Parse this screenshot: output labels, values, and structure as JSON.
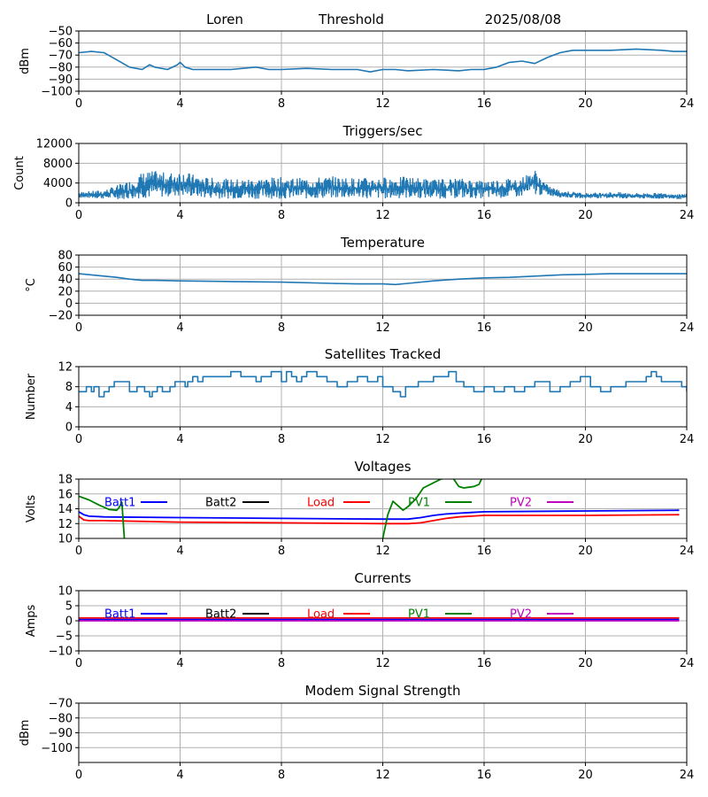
{
  "header": {
    "site": "Loren",
    "mode": "Threshold",
    "date": "2025/08/08"
  },
  "colors": {
    "series_default": "#1f77b4",
    "Batt1": "#0000ff",
    "Batt2": "#000000",
    "Load": "#ff0000",
    "PV1": "#008000",
    "PV2": "#bf00bf"
  },
  "chart_data": [
    {
      "id": "signal",
      "type": "line",
      "title": "",
      "ylabel": "dBm",
      "xlim": [
        0,
        24
      ],
      "ylim": [
        -100,
        -50
      ],
      "xticks": [
        0,
        4,
        8,
        12,
        16,
        20,
        24
      ],
      "yticks": [
        -100,
        -90,
        -80,
        -70,
        -60,
        -50
      ],
      "grid": true,
      "series": [
        {
          "color": "#1f77b4",
          "x": [
            0,
            0.5,
            1.0,
            1.5,
            2.0,
            2.5,
            2.8,
            3.0,
            3.5,
            3.9,
            4.0,
            4.2,
            4.5,
            5.0,
            6.0,
            7.0,
            7.5,
            8.0,
            9.0,
            10.0,
            11.0,
            11.5,
            12.0,
            12.5,
            13.0,
            14.0,
            15.0,
            15.5,
            16.0,
            16.5,
            17.0,
            17.5,
            18.0,
            18.5,
            19.0,
            19.5,
            20.0,
            21.0,
            22.0,
            23.0,
            23.5,
            24.0
          ],
          "y": [
            -68,
            -67,
            -68,
            -74,
            -80,
            -82,
            -78,
            -80,
            -82,
            -78,
            -76,
            -80,
            -82,
            -82,
            -82,
            -80,
            -82,
            -82,
            -81,
            -82,
            -82,
            -84,
            -82,
            -82,
            -83,
            -82,
            -83,
            -82,
            -82,
            -80,
            -76,
            -75,
            -77,
            -72,
            -68,
            -66,
            -66,
            -66,
            -65,
            -66,
            -67,
            -67
          ]
        }
      ]
    },
    {
      "id": "triggers",
      "type": "line",
      "title": "Triggers/sec",
      "ylabel": "Count",
      "xlim": [
        0,
        24
      ],
      "ylim": [
        0,
        12000
      ],
      "xticks": [
        0,
        4,
        8,
        12,
        16,
        20,
        24
      ],
      "yticks": [
        0,
        4000,
        8000,
        12000
      ],
      "grid": true,
      "series": [
        {
          "color": "#1f77b4",
          "x": [
            0,
            1,
            2,
            2.5,
            3,
            3.5,
            4,
            4.5,
            5,
            6,
            7,
            8,
            9,
            10,
            11,
            12,
            13,
            14,
            15,
            16,
            17,
            17.5,
            18,
            18.5,
            19,
            20,
            21,
            22,
            23,
            24
          ],
          "y_low": [
            1000,
            800,
            700,
            900,
            1000,
            1200,
            1300,
            1200,
            900,
            800,
            800,
            800,
            800,
            900,
            900,
            800,
            900,
            800,
            900,
            900,
            1000,
            1200,
            1500,
            1500,
            1100,
            900,
            900,
            800,
            800,
            700
          ],
          "y_high": [
            2200,
            2600,
            4500,
            6200,
            6500,
            6000,
            6600,
            5800,
            5200,
            4800,
            5000,
            5200,
            5000,
            5400,
            5000,
            5200,
            5300,
            4800,
            5000,
            4600,
            5000,
            5200,
            6800,
            3600,
            2500,
            2000,
            2200,
            2000,
            2000,
            1800
          ]
        }
      ]
    },
    {
      "id": "temperature",
      "type": "line",
      "title": "Temperature",
      "ylabel": "°C",
      "xlim": [
        0,
        24
      ],
      "ylim": [
        -20,
        80
      ],
      "xticks": [
        0,
        4,
        8,
        12,
        16,
        20,
        24
      ],
      "yticks": [
        -20,
        0,
        20,
        40,
        60,
        80
      ],
      "grid": true,
      "series": [
        {
          "color": "#1f77b4",
          "x": [
            0,
            0.5,
            1,
            1.5,
            2,
            2.5,
            3,
            4,
            6,
            8,
            10,
            11,
            12,
            12.5,
            13,
            14,
            15,
            16,
            17,
            18,
            19,
            20,
            21,
            22,
            23,
            24
          ],
          "y": [
            49,
            47,
            45,
            43,
            40,
            38,
            38,
            37,
            36,
            35,
            33,
            32,
            32,
            31,
            33,
            37,
            40,
            42,
            43,
            45,
            47,
            48,
            49,
            49,
            49,
            49
          ]
        }
      ]
    },
    {
      "id": "satellites",
      "type": "line",
      "step": true,
      "title": "Satellites Tracked",
      "ylabel": "Number",
      "xlim": [
        0,
        24
      ],
      "ylim": [
        0,
        12
      ],
      "xticks": [
        0,
        4,
        8,
        12,
        16,
        20,
        24
      ],
      "yticks": [
        0,
        4,
        8,
        12
      ],
      "grid": true,
      "series": [
        {
          "color": "#1f77b4",
          "x": [
            0,
            0.3,
            0.5,
            0.6,
            0.8,
            1.0,
            1.2,
            1.4,
            1.6,
            2.0,
            2.3,
            2.6,
            2.8,
            2.9,
            3.1,
            3.3,
            3.6,
            3.8,
            4.0,
            4.2,
            4.3,
            4.5,
            4.7,
            4.9,
            5.1,
            5.4,
            6.0,
            6.4,
            6.7,
            7.0,
            7.2,
            7.6,
            8.0,
            8.2,
            8.4,
            8.6,
            8.8,
            9.0,
            9.4,
            9.8,
            10.2,
            10.6,
            11.0,
            11.4,
            11.8,
            12.0,
            12.4,
            12.7,
            12.9,
            13.4,
            14.0,
            14.6,
            14.9,
            15.2,
            15.6,
            16.0,
            16.4,
            16.8,
            17.2,
            17.6,
            18.0,
            18.6,
            19.0,
            19.4,
            19.8,
            20.2,
            20.6,
            21.0,
            21.4,
            21.6,
            22.0,
            22.4,
            22.6,
            22.8,
            23.0,
            23.4,
            23.8,
            24.0
          ],
          "y": [
            7,
            8,
            7,
            8,
            6,
            7,
            8,
            9,
            9,
            7,
            8,
            7,
            6,
            7,
            8,
            7,
            8,
            9,
            9,
            8,
            9,
            10,
            9,
            10,
            10,
            10,
            11,
            10,
            10,
            9,
            10,
            11,
            9,
            11,
            10,
            9,
            10,
            11,
            10,
            9,
            8,
            9,
            10,
            9,
            10,
            8,
            7,
            6,
            8,
            9,
            10,
            11,
            9,
            8,
            7,
            8,
            7,
            8,
            7,
            8,
            9,
            7,
            8,
            9,
            10,
            8,
            7,
            8,
            8,
            9,
            9,
            10,
            11,
            10,
            9,
            9,
            8,
            7
          ]
        }
      ]
    },
    {
      "id": "voltages",
      "type": "line",
      "title": "Voltages",
      "ylabel": "Volts",
      "xlim": [
        0,
        24
      ],
      "ylim": [
        10,
        18
      ],
      "xticks": [
        0,
        4,
        8,
        12,
        16,
        20,
        24
      ],
      "yticks": [
        10,
        12,
        14,
        16,
        18
      ],
      "grid": true,
      "legend": [
        "Batt1",
        "Batt2",
        "Load",
        "PV1",
        "PV2"
      ],
      "series": [
        {
          "name": "Batt1",
          "color": "#0000ff",
          "x": [
            0,
            0.2,
            0.4,
            1,
            4,
            8,
            12,
            13,
            13.5,
            14,
            14.5,
            15,
            15.5,
            16,
            20,
            23.7
          ],
          "y": [
            13.6,
            13.2,
            13.0,
            12.9,
            12.8,
            12.7,
            12.6,
            12.6,
            12.8,
            13.1,
            13.3,
            13.4,
            13.5,
            13.6,
            13.7,
            13.8
          ]
        },
        {
          "name": "Load",
          "color": "#ff0000",
          "x": [
            0,
            0.2,
            0.4,
            1,
            4,
            8,
            12,
            13,
            13.5,
            14,
            14.5,
            15,
            15.5,
            16,
            20,
            23.7
          ],
          "y": [
            13.0,
            12.5,
            12.4,
            12.4,
            12.2,
            12.1,
            12.0,
            12.0,
            12.1,
            12.4,
            12.7,
            12.9,
            13.0,
            13.1,
            13.1,
            13.2
          ]
        },
        {
          "name": "PV1",
          "segments": [
            {
              "x": [
                0,
                0.4,
                0.8,
                1.2,
                1.5,
                1.6,
                1.7,
                1.8
              ],
              "y": [
                15.7,
                15.2,
                14.5,
                13.9,
                13.8,
                14.2,
                14.9,
                10.0
              ]
            },
            {
              "x": [
                12.0,
                12.2,
                12.4,
                12.6,
                12.8,
                13.0,
                13.3,
                13.6,
                14.0,
                14.3,
                14.6,
                14.8,
                15.0,
                15.2,
                15.4,
                15.6,
                15.8,
                15.9
              ],
              "y": [
                10.0,
                13.2,
                15.0,
                14.4,
                13.8,
                14.3,
                15.3,
                16.8,
                17.5,
                18.0,
                18.2,
                18.0,
                17.0,
                16.8,
                16.9,
                17.0,
                17.3,
                18.0
              ]
            }
          ],
          "color": "#008000"
        },
        {
          "name": "Batt2",
          "color": "#000000",
          "x": [],
          "y": []
        },
        {
          "name": "PV2",
          "color": "#bf00bf",
          "x": [],
          "y": []
        }
      ]
    },
    {
      "id": "currents",
      "type": "line",
      "title": "Currents",
      "ylabel": "Amps",
      "xlim": [
        0,
        24
      ],
      "ylim": [
        -10,
        10
      ],
      "xticks": [
        0,
        4,
        8,
        12,
        16,
        20,
        24
      ],
      "yticks": [
        -10,
        -5,
        0,
        5,
        10
      ],
      "grid": true,
      "legend": [
        "Batt1",
        "Batt2",
        "Load",
        "PV1",
        "PV2"
      ],
      "series": [
        {
          "name": "Load",
          "color": "#ff0000",
          "x": [
            0,
            8,
            16,
            23.7
          ],
          "y": [
            0.9,
            0.9,
            0.9,
            0.9
          ]
        },
        {
          "name": "Batt1",
          "color": "#0000ff",
          "x": [
            0,
            8,
            16,
            23.7
          ],
          "y": [
            0.4,
            0.4,
            0.4,
            0.4
          ]
        },
        {
          "name": "PV2",
          "color": "#bf00bf",
          "x": [
            0,
            8,
            16,
            23.7
          ],
          "y": [
            0.0,
            0.0,
            0.0,
            0.0
          ]
        },
        {
          "name": "Batt2",
          "color": "#000000",
          "x": [],
          "y": []
        },
        {
          "name": "PV1",
          "color": "#008000",
          "x": [],
          "y": []
        }
      ]
    },
    {
      "id": "modem",
      "type": "line",
      "title": "Modem Signal Strength",
      "ylabel": "dBm",
      "xlim": [
        0,
        24
      ],
      "ylim": [
        -110,
        -70
      ],
      "xticks": [
        0,
        4,
        8,
        12,
        16,
        20,
        24
      ],
      "yticks": [
        -100,
        -90,
        -80,
        -70
      ],
      "grid": true,
      "series": []
    }
  ]
}
